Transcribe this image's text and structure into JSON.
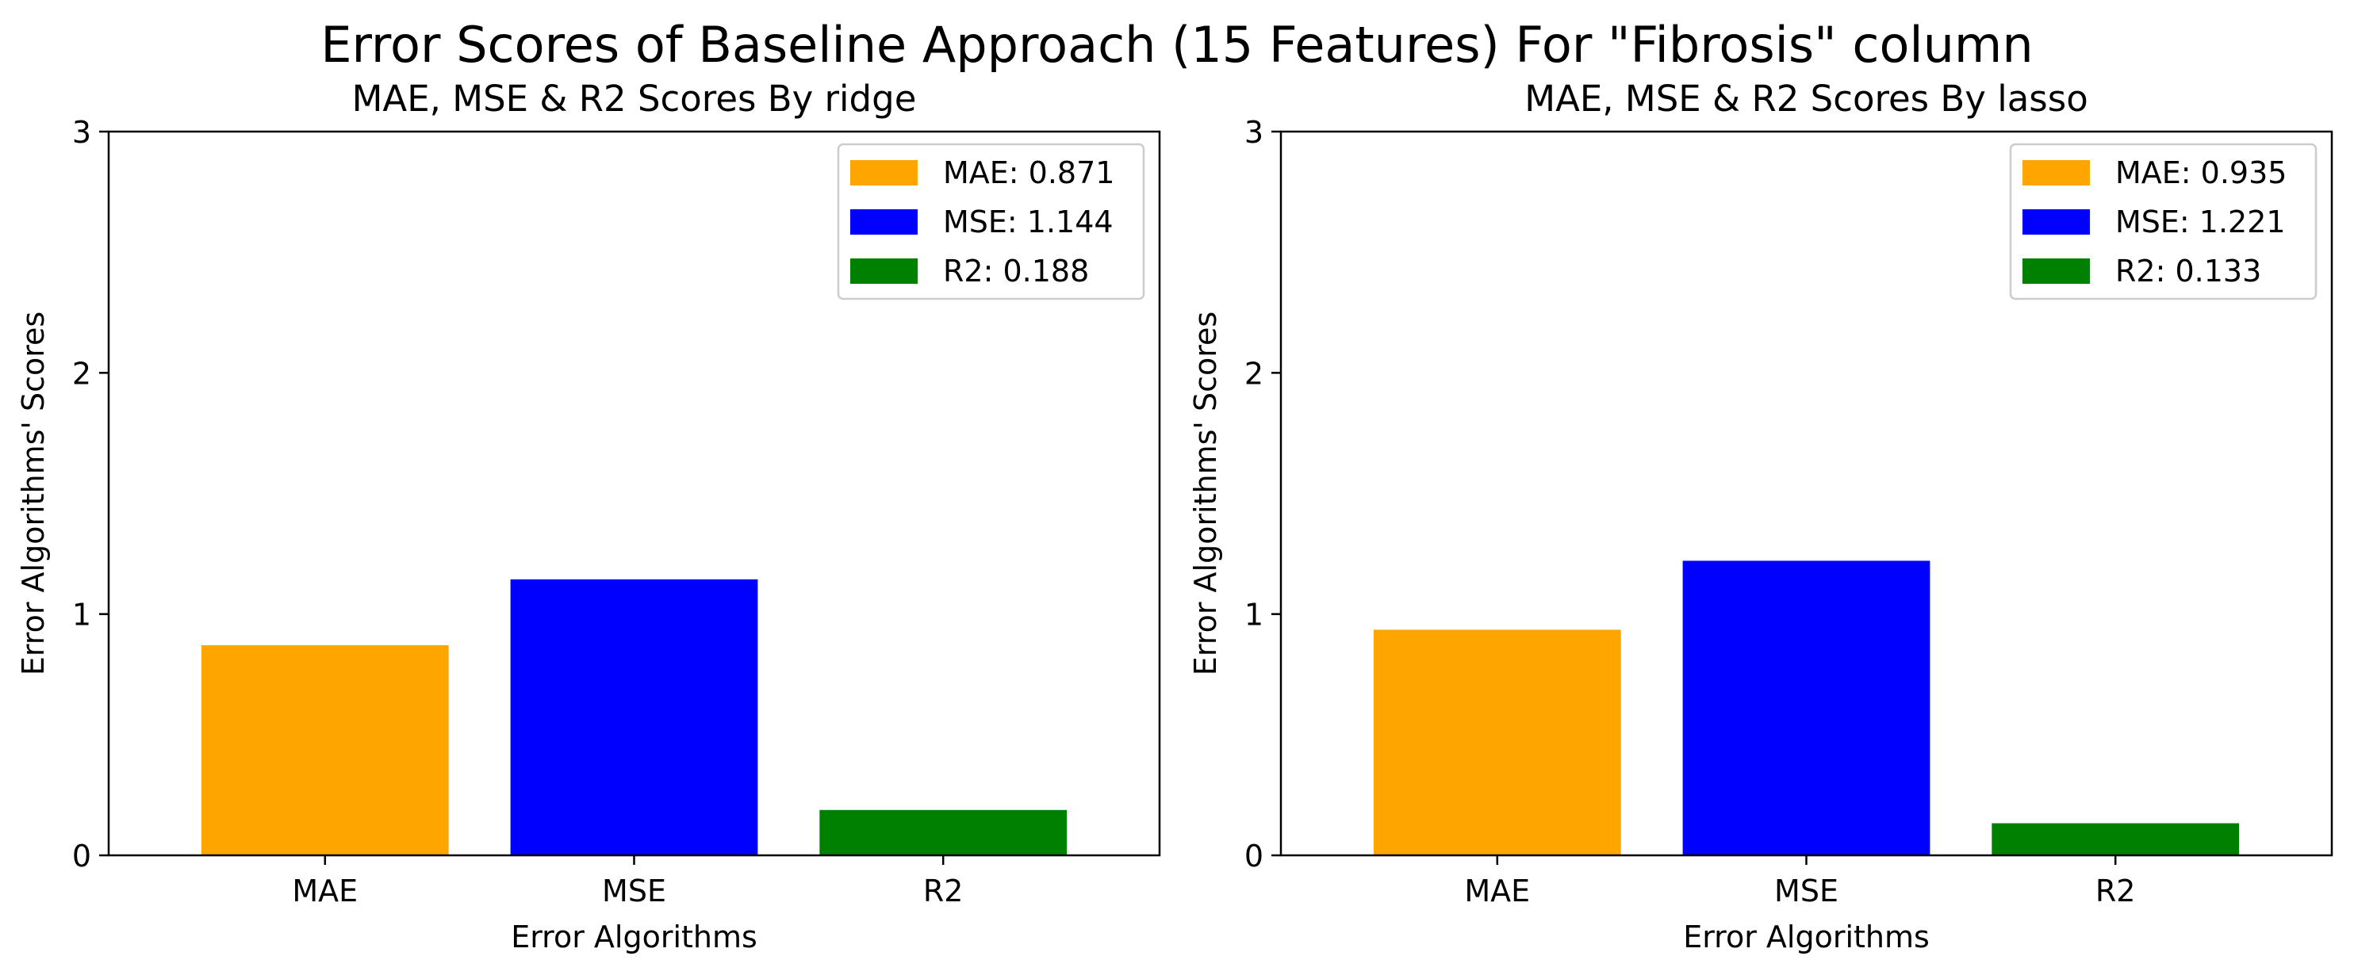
{
  "figure": {
    "suptitle": "Error Scores of Baseline Approach (15 Features) For \"Fibrosis\" column"
  },
  "chart_data": [
    {
      "type": "bar",
      "title": "MAE, MSE & R2 Scores By ridge",
      "xlabel": "Error Algorithms",
      "ylabel": "Error Algorithms' Scores",
      "categories": [
        "MAE",
        "MSE",
        "R2"
      ],
      "values": [
        0.871,
        1.144,
        0.188
      ],
      "colors": [
        "#ffa500",
        "#0000ff",
        "#008000"
      ],
      "legend": [
        "MAE: 0.871",
        "MSE: 1.144",
        "R2: 0.188"
      ],
      "legend_position": "top-right",
      "ylim": [
        0,
        3
      ],
      "yticks": [
        "0",
        "1",
        "2",
        "3"
      ],
      "grid": false
    },
    {
      "type": "bar",
      "title": "MAE, MSE & R2 Scores By lasso",
      "xlabel": "Error Algorithms",
      "ylabel": "Error Algorithms' Scores",
      "categories": [
        "MAE",
        "MSE",
        "R2"
      ],
      "values": [
        0.935,
        1.221,
        0.133
      ],
      "colors": [
        "#ffa500",
        "#0000ff",
        "#008000"
      ],
      "legend": [
        "MAE: 0.935",
        "MSE: 1.221",
        "R2: 0.133"
      ],
      "legend_position": "top-right",
      "ylim": [
        0,
        3
      ],
      "yticks": [
        "0",
        "1",
        "2",
        "3"
      ],
      "grid": false
    }
  ]
}
